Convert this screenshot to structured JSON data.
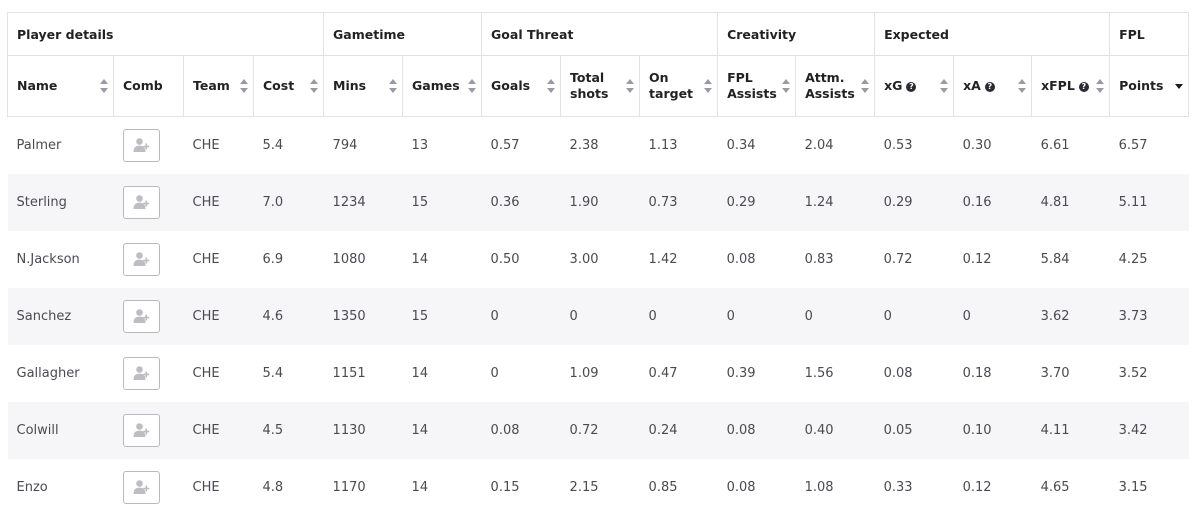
{
  "groups": [
    {
      "key": "player",
      "label": "Player details"
    },
    {
      "key": "gametime",
      "label": "Gametime"
    },
    {
      "key": "threat",
      "label": "Goal Threat"
    },
    {
      "key": "creativity",
      "label": "Creativity"
    },
    {
      "key": "expected",
      "label": "Expected"
    },
    {
      "key": "fpl",
      "label": "FPL"
    }
  ],
  "columns": {
    "name": "Name",
    "comb": "Comb",
    "team": "Team",
    "cost": "Cost",
    "mins": "Mins",
    "games": "Games",
    "goals": "Goals",
    "total_shots": "Total shots",
    "on_target": "On target",
    "fpl_assists": "FPL Assists",
    "attm_assists": "Attm. Assists",
    "xg": "xG",
    "xa": "xA",
    "xfpl": "xFPL",
    "points": "Points",
    "help_glyph": "?",
    "sorted_column": "points",
    "sort_direction": "descending"
  },
  "comb_icon": "add-user-icon",
  "rows": [
    {
      "name": "Palmer",
      "team": "CHE",
      "cost": "5.4",
      "mins": "794",
      "games": "13",
      "goals": "0.57",
      "total_shots": "2.38",
      "on_target": "1.13",
      "fpl_assists": "0.34",
      "attm_assists": "2.04",
      "xg": "0.53",
      "xa": "0.30",
      "xfpl": "6.61",
      "points": "6.57"
    },
    {
      "name": "Sterling",
      "team": "CHE",
      "cost": "7.0",
      "mins": "1234",
      "games": "15",
      "goals": "0.36",
      "total_shots": "1.90",
      "on_target": "0.73",
      "fpl_assists": "0.29",
      "attm_assists": "1.24",
      "xg": "0.29",
      "xa": "0.16",
      "xfpl": "4.81",
      "points": "5.11"
    },
    {
      "name": "N.Jackson",
      "team": "CHE",
      "cost": "6.9",
      "mins": "1080",
      "games": "14",
      "goals": "0.50",
      "total_shots": "3.00",
      "on_target": "1.42",
      "fpl_assists": "0.08",
      "attm_assists": "0.83",
      "xg": "0.72",
      "xa": "0.12",
      "xfpl": "5.84",
      "points": "4.25"
    },
    {
      "name": "Sanchez",
      "team": "CHE",
      "cost": "4.6",
      "mins": "1350",
      "games": "15",
      "goals": "0",
      "total_shots": "0",
      "on_target": "0",
      "fpl_assists": "0",
      "attm_assists": "0",
      "xg": "0",
      "xa": "0",
      "xfpl": "3.62",
      "points": "3.73"
    },
    {
      "name": "Gallagher",
      "team": "CHE",
      "cost": "5.4",
      "mins": "1151",
      "games": "14",
      "goals": "0",
      "total_shots": "1.09",
      "on_target": "0.47",
      "fpl_assists": "0.39",
      "attm_assists": "1.56",
      "xg": "0.08",
      "xa": "0.18",
      "xfpl": "3.70",
      "points": "3.52"
    },
    {
      "name": "Colwill",
      "team": "CHE",
      "cost": "4.5",
      "mins": "1130",
      "games": "14",
      "goals": "0.08",
      "total_shots": "0.72",
      "on_target": "0.24",
      "fpl_assists": "0.08",
      "attm_assists": "0.40",
      "xg": "0.05",
      "xa": "0.10",
      "xfpl": "4.11",
      "points": "3.42"
    },
    {
      "name": "Enzo",
      "team": "CHE",
      "cost": "4.8",
      "mins": "1170",
      "games": "14",
      "goals": "0.15",
      "total_shots": "2.15",
      "on_target": "0.85",
      "fpl_assists": "0.08",
      "attm_assists": "1.08",
      "xg": "0.33",
      "xa": "0.12",
      "xfpl": "4.65",
      "points": "3.15"
    }
  ]
}
